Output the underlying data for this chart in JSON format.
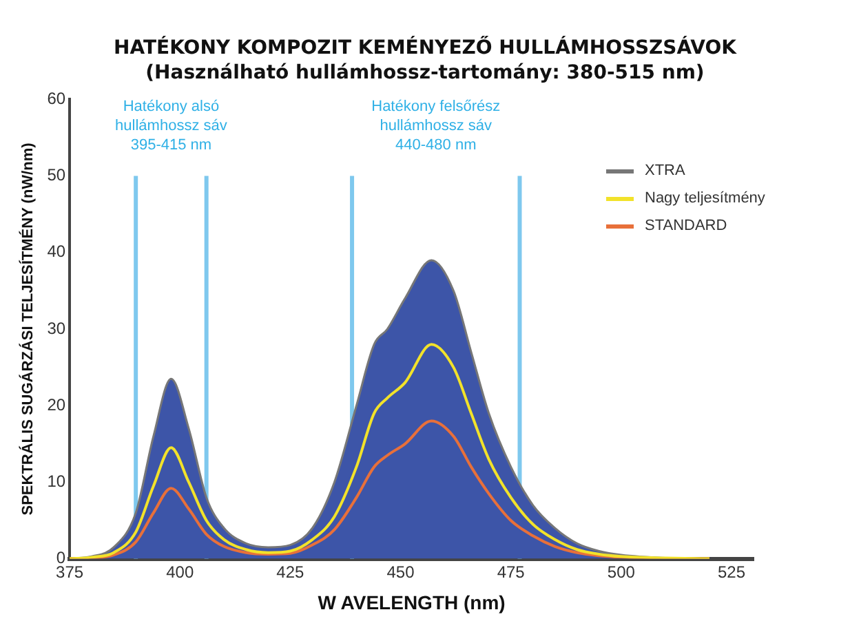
{
  "chart_data": {
    "type": "line",
    "title": "HATÉKONY KOMPOZIT KEMÉNYEZŐ HULLÁMHOSSZSÁVOK",
    "subtitle": "(Használható hullámhossz-tartomány: 380-515 nm)",
    "xlabel": "W AVELENGTH (nm)",
    "ylabel": "SPEKTRÁLIS SUGÁRZÁSI TELJESÍTMÉNY (nW/nm)",
    "x": [
      375,
      380,
      385,
      390,
      394,
      398,
      402,
      406,
      410,
      415,
      420,
      425,
      430,
      435,
      440,
      444,
      447,
      451,
      457,
      462,
      466,
      470,
      475,
      480,
      485,
      490,
      495,
      500,
      510,
      520
    ],
    "series": [
      {
        "name": "XTRA",
        "type": "area",
        "color": "#3d55a8",
        "values": [
          0,
          0.3,
          1.5,
          6,
          16,
          23.5,
          17,
          8,
          4,
          2,
          1.5,
          1.8,
          4,
          10,
          20,
          28,
          30,
          34,
          39,
          35,
          27,
          19,
          12,
          7,
          4,
          2,
          1,
          0.5,
          0.1,
          0
        ]
      },
      {
        "name": "Nagy teljesítmény",
        "type": "line",
        "color": "#f2e22a",
        "values": [
          0,
          0.2,
          0.8,
          3.5,
          9.5,
          14.5,
          10,
          5,
          2.5,
          1.2,
          0.8,
          1,
          2.5,
          5.5,
          12,
          19,
          21,
          23,
          28,
          25,
          19,
          13,
          8,
          4.5,
          2.5,
          1.2,
          0.6,
          0.3,
          0.1,
          0
        ]
      },
      {
        "name": "STANDARD",
        "type": "line",
        "color": "#e8703a",
        "values": [
          0,
          0.1,
          0.5,
          2.2,
          6,
          9.2,
          6.5,
          3.2,
          1.6,
          0.8,
          0.6,
          0.7,
          1.8,
          3.8,
          8,
          12,
          13.5,
          15,
          18,
          16,
          12,
          8.5,
          5,
          3,
          1.6,
          0.8,
          0.4,
          0.2,
          0,
          0
        ]
      }
    ],
    "xlim": [
      375,
      530
    ],
    "xticks": [
      375,
      400,
      425,
      450,
      475,
      500,
      525
    ],
    "ylim": [
      0,
      60
    ],
    "yticks": [
      0,
      10,
      20,
      30,
      40,
      50,
      60
    ],
    "ref_lines": [
      {
        "axis": "x",
        "value": 390,
        "color": "#7ec8ee"
      },
      {
        "axis": "x",
        "value": 406,
        "color": "#7ec8ee"
      },
      {
        "axis": "x",
        "value": 439,
        "color": "#7ec8ee"
      },
      {
        "axis": "x",
        "value": 477,
        "color": "#7ec8ee"
      }
    ],
    "annotations": [
      "Hatékony alsó\nhullámhossz sáv\n395-415 nm",
      "Hatékony felsőrész\nhullámhossz sáv\n440-480 nm"
    ],
    "grid": false,
    "legend": "top right",
    "marker": "none",
    "line_style": "solid"
  }
}
